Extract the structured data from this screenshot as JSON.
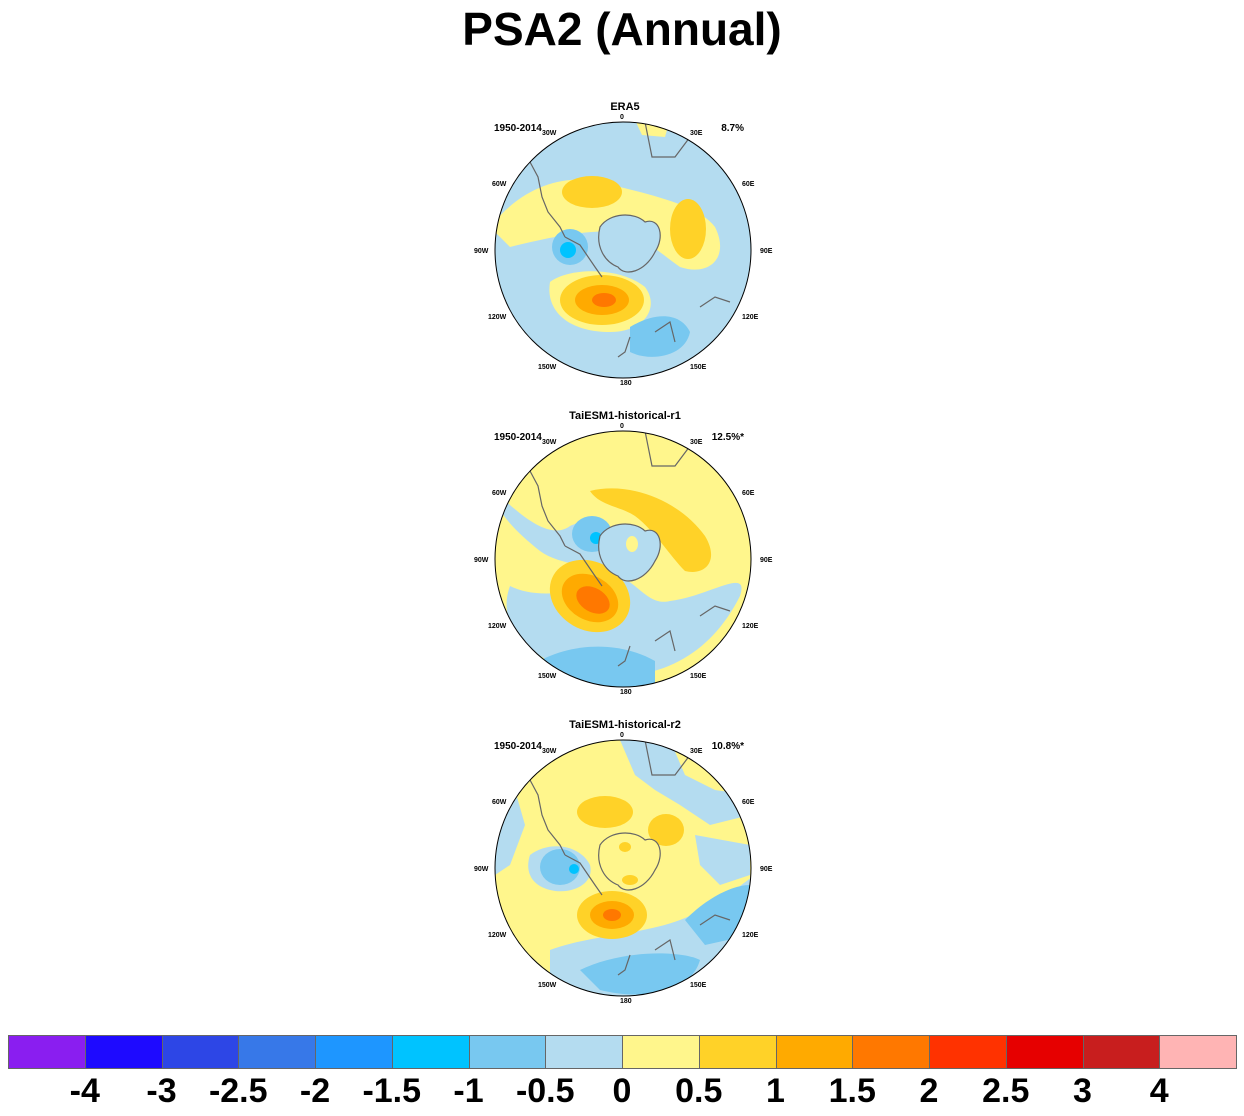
{
  "title": "PSA2 (Annual)",
  "lon_labels": [
    "0",
    "30E",
    "60E",
    "90E",
    "120E",
    "150E",
    "180",
    "150W",
    "120W",
    "90W",
    "60W",
    "30W"
  ],
  "panels": [
    {
      "title": "ERA5",
      "period": "1950-2014",
      "variance": "8.7%"
    },
    {
      "title": "TaiESM1-historical-r1",
      "period": "1950-2014",
      "variance": "12.5%*"
    },
    {
      "title": "TaiESM1-historical-r2",
      "period": "1950-2014",
      "variance": "10.8%*"
    }
  ],
  "colorbar": {
    "colors": [
      "#8a1ef0",
      "#1e0aff",
      "#2d46e6",
      "#3778e8",
      "#1e96ff",
      "#00c3ff",
      "#78c8f0",
      "#b4dcf0",
      "#fff68c",
      "#ffd228",
      "#ffaa00",
      "#ff7800",
      "#ff3200",
      "#e60000",
      "#c81e1e",
      "#ffb4b4"
    ],
    "labels": [
      "-4",
      "-3",
      "-2.5",
      "-2",
      "-1.5",
      "-1",
      "-0.5",
      "0",
      "0.5",
      "1",
      "1.5",
      "2",
      "2.5",
      "3",
      "4"
    ]
  }
}
